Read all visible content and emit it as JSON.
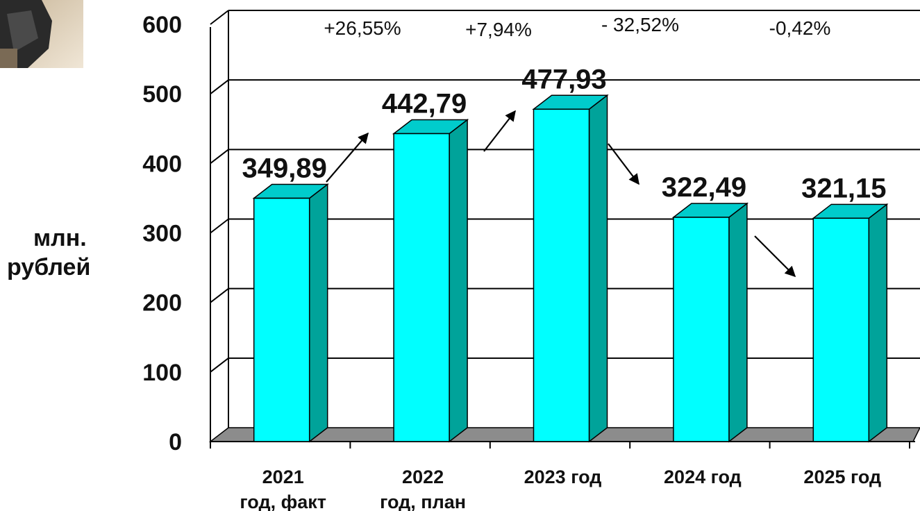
{
  "chart_data": {
    "type": "bar",
    "title": "",
    "xlabel": "",
    "ylabel": [
      "млн.",
      "рублей"
    ],
    "ylim": [
      0,
      600
    ],
    "yticks": [
      "0",
      "100",
      "200",
      "300",
      "400",
      "500",
      "600"
    ],
    "grid": true,
    "legend": "none",
    "categories": [
      [
        "2021",
        "год, факт"
      ],
      [
        "2022",
        "год, план"
      ],
      [
        "2023 год"
      ],
      [
        "2024 год"
      ],
      [
        "2025 год"
      ]
    ],
    "values": [
      349.89,
      442.79,
      477.93,
      322.49,
      321.15
    ],
    "value_labels": [
      "349,89",
      "442,79",
      "477,93",
      "322,49",
      "321,15"
    ],
    "changes": [
      "+26,55%",
      "+7,94%",
      "- 32,52%",
      "-0,42%"
    ],
    "colors": {
      "bar_front": "#00FFFF",
      "bar_side": "#00A39A",
      "bar_top": "#00CCCC",
      "floor": "#8C8C8C",
      "grid": "#000000"
    }
  }
}
